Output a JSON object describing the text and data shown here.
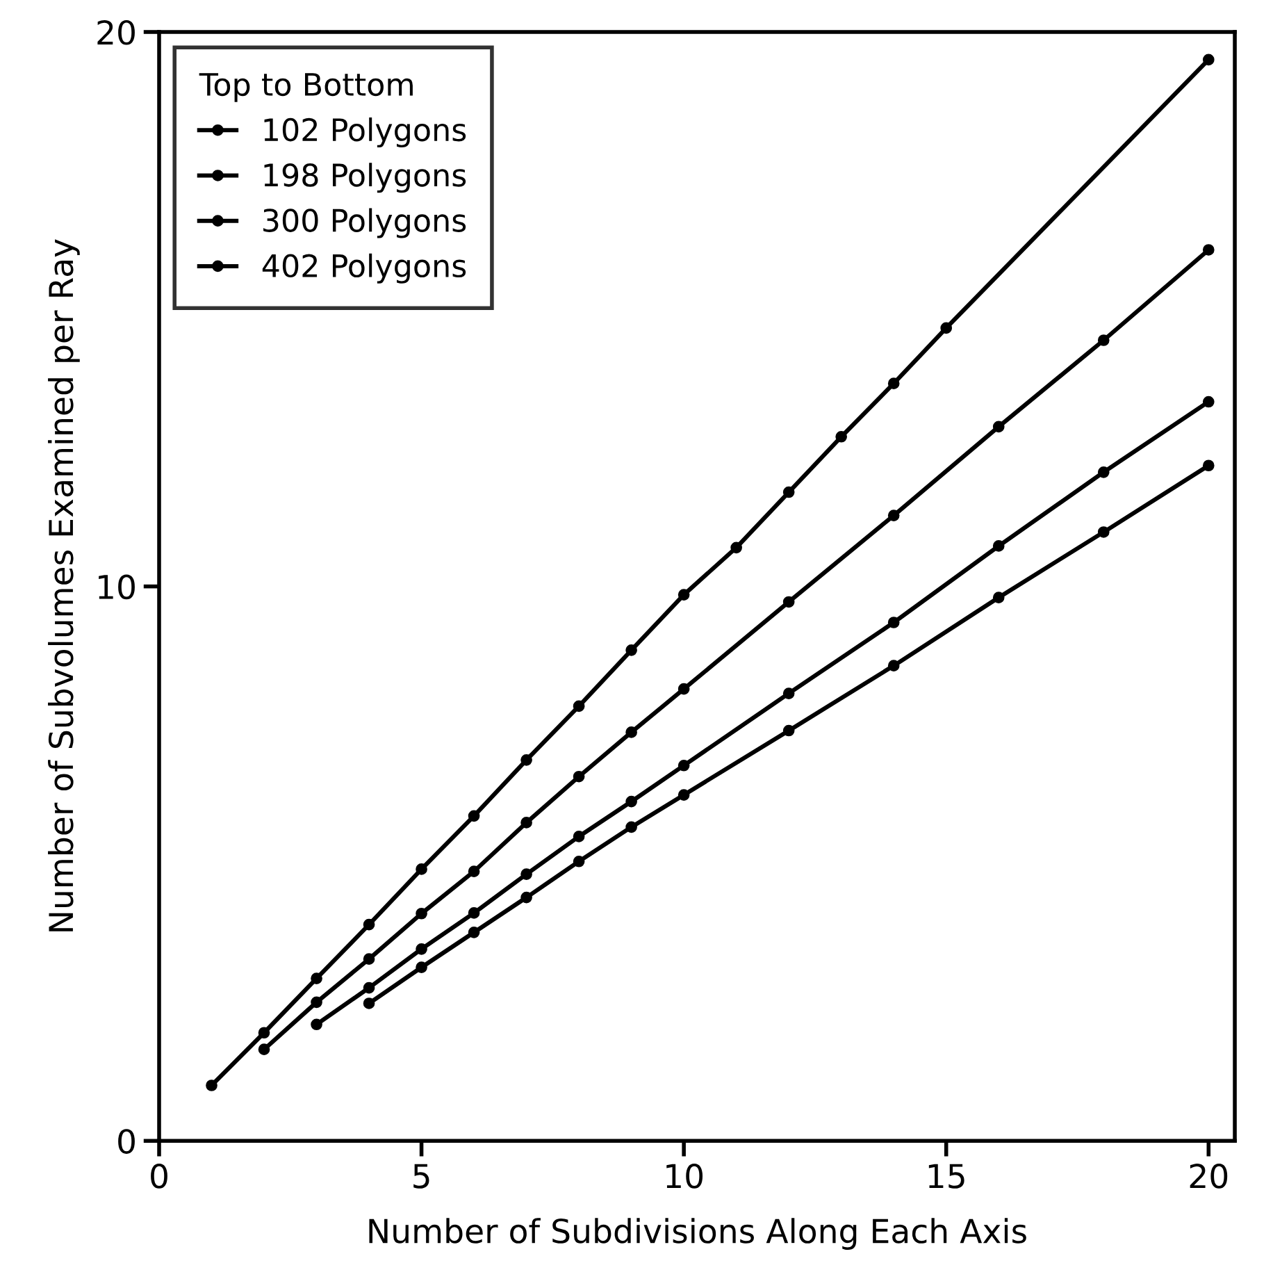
{
  "chart_data": {
    "type": "line",
    "xlabel": "Number of Subdivisions Along Each Axis",
    "ylabel": "Number of Subvolumes Examined per Ray",
    "legend_title": "Top to Bottom",
    "legend": "top left",
    "marker": "circle",
    "line_style": "solid",
    "grid": false,
    "xlim": [
      0,
      20.5
    ],
    "ylim": [
      0,
      20
    ],
    "xticks": [
      0,
      5,
      10,
      15,
      20
    ],
    "yticks": [
      0,
      10,
      20
    ],
    "series": [
      {
        "name": "102 Polygons",
        "color": "#000000",
        "x": [
          1,
          2,
          3,
          4,
          5,
          6,
          7,
          8,
          9,
          10,
          11,
          12,
          13,
          14,
          15,
          20
        ],
        "values": [
          1.0,
          1.95,
          2.93,
          3.9,
          4.9,
          5.86,
          6.87,
          7.84,
          8.85,
          9.85,
          10.7,
          11.7,
          12.7,
          13.66,
          14.66,
          19.5
        ]
      },
      {
        "name": "198 Polygons",
        "color": "#000000",
        "x": [
          2,
          3,
          4,
          5,
          6,
          7,
          8,
          9,
          10,
          12,
          14,
          16,
          18,
          20
        ],
        "values": [
          1.65,
          2.5,
          3.28,
          4.1,
          4.86,
          5.74,
          6.57,
          7.37,
          8.15,
          9.72,
          11.28,
          12.88,
          14.44,
          16.07
        ]
      },
      {
        "name": "300 Polygons",
        "color": "#000000",
        "x": [
          3,
          4,
          5,
          6,
          7,
          8,
          9,
          10,
          12,
          14,
          16,
          18,
          20
        ],
        "values": [
          2.1,
          2.76,
          3.46,
          4.11,
          4.81,
          5.49,
          6.12,
          6.77,
          8.07,
          9.35,
          10.73,
          12.06,
          13.33
        ]
      },
      {
        "name": "402 Polygons",
        "color": "#000000",
        "x": [
          4,
          5,
          6,
          7,
          8,
          9,
          10,
          12,
          14,
          16,
          18,
          20
        ],
        "values": [
          2.48,
          3.13,
          3.76,
          4.39,
          5.04,
          5.66,
          6.24,
          7.4,
          8.57,
          9.8,
          10.98,
          12.18
        ]
      }
    ]
  }
}
